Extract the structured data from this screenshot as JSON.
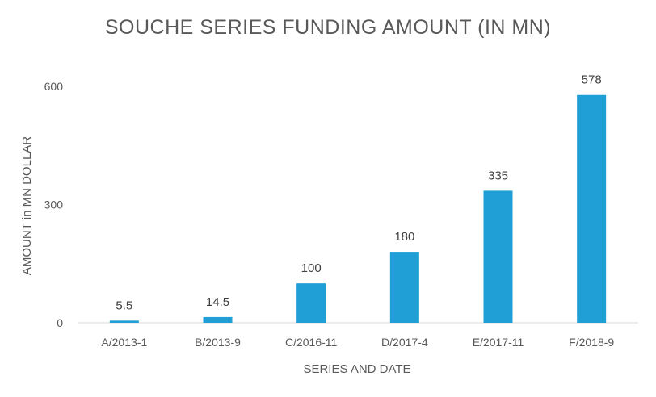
{
  "chart_data": {
    "type": "bar",
    "title": "SOUCHE SERIES FUNDING AMOUNT (IN MN)",
    "xlabel": "SERIES AND DATE",
    "ylabel": "AMOUNT in MN DOLLAR",
    "categories": [
      "A/2013-1",
      "B/2013-9",
      "C/2016-11",
      "D/2017-4",
      "E/2017-11",
      "F/2018-9"
    ],
    "values": [
      5.5,
      14.5,
      100,
      180,
      335,
      578
    ],
    "value_labels": [
      "5.5",
      "14.5",
      "100",
      "180",
      "335",
      "578"
    ],
    "ylim": [
      0,
      600
    ],
    "yticks": [
      0,
      300,
      600
    ],
    "ytick_labels": [
      "0",
      "300",
      "600"
    ],
    "grid": false,
    "legend": "none",
    "colors": {
      "bar": "#1f9fd5",
      "title": "#595959",
      "axis_text": "#595959",
      "data_label": "#404040",
      "baseline": "#d9d9d9"
    }
  }
}
